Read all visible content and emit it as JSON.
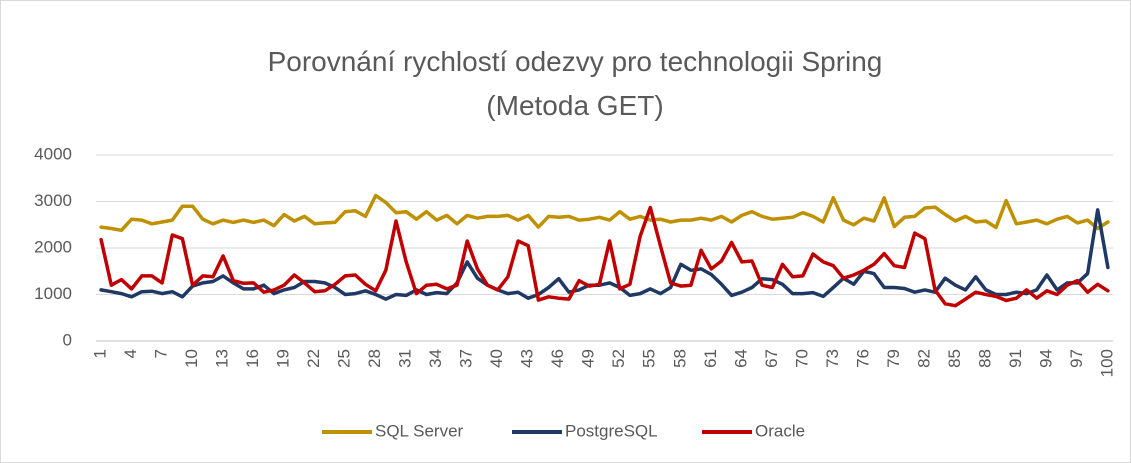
{
  "chart_data": {
    "type": "line",
    "title": "Porovnání rychlostí odezvy pro technologii Spring\n(Metoda GET)",
    "categories": [
      "1",
      null,
      null,
      "4",
      null,
      null,
      "7",
      null,
      null,
      "10",
      null,
      null,
      "13",
      null,
      null,
      "16",
      null,
      null,
      "19",
      null,
      null,
      "22",
      null,
      null,
      "25",
      null,
      null,
      "28",
      null,
      null,
      "31",
      null,
      null,
      "34",
      null,
      null,
      "37",
      null,
      null,
      "40",
      null,
      null,
      "43",
      null,
      null,
      "46",
      null,
      null,
      "49",
      null,
      null,
      "52",
      null,
      null,
      "55",
      null,
      null,
      "58",
      null,
      null,
      "61",
      null,
      null,
      "64",
      null,
      null,
      "67",
      null,
      null,
      "70",
      null,
      null,
      "73",
      null,
      null,
      "76",
      null,
      null,
      "79",
      null,
      null,
      "82",
      null,
      null,
      "85",
      null,
      null,
      "88",
      null,
      null,
      "91",
      null,
      null,
      "94",
      null,
      null,
      "97",
      null,
      null,
      "100"
    ],
    "series": [
      {
        "name": "SQL Server",
        "color": "#bf9000",
        "values": [
          2450,
          2420,
          2380,
          2620,
          2600,
          2520,
          2560,
          2600,
          2900,
          2900,
          2620,
          2520,
          2600,
          2550,
          2600,
          2550,
          2600,
          2480,
          2720,
          2580,
          2680,
          2520,
          2540,
          2550,
          2780,
          2800,
          2680,
          3130,
          2980,
          2760,
          2780,
          2620,
          2780,
          2600,
          2700,
          2520,
          2700,
          2640,
          2680,
          2680,
          2700,
          2600,
          2700,
          2450,
          2680,
          2660,
          2680,
          2600,
          2620,
          2660,
          2600,
          2780,
          2620,
          2680,
          2600,
          2620,
          2560,
          2600,
          2600,
          2640,
          2600,
          2680,
          2560,
          2700,
          2780,
          2680,
          2620,
          2640,
          2660,
          2760,
          2680,
          2560,
          3080,
          2600,
          2500,
          2640,
          2580,
          3080,
          2460,
          2660,
          2680,
          2860,
          2880,
          2720,
          2580,
          2680,
          2560,
          2580,
          2440,
          3020,
          2520,
          2560,
          2600,
          2520,
          2620,
          2680,
          2540,
          2600,
          2420,
          2560
        ]
      },
      {
        "name": "PostgreSQL",
        "color": "#1f3864",
        "values": [
          1100,
          1060,
          1020,
          950,
          1060,
          1070,
          1020,
          1060,
          950,
          1180,
          1250,
          1280,
          1400,
          1250,
          1120,
          1120,
          1200,
          1020,
          1100,
          1150,
          1280,
          1280,
          1250,
          1150,
          1000,
          1020,
          1080,
          1000,
          900,
          1000,
          980,
          1100,
          1000,
          1040,
          1020,
          1250,
          1700,
          1350,
          1200,
          1100,
          1020,
          1050,
          920,
          1000,
          1150,
          1340,
          1050,
          1100,
          1200,
          1200,
          1250,
          1150,
          980,
          1020,
          1120,
          1020,
          1150,
          1650,
          1520,
          1550,
          1430,
          1220,
          980,
          1050,
          1150,
          1340,
          1320,
          1220,
          1020,
          1020,
          1040,
          960,
          1150,
          1350,
          1220,
          1500,
          1450,
          1150,
          1150,
          1130,
          1050,
          1100,
          1050,
          1350,
          1200,
          1100,
          1380,
          1100,
          1000,
          1000,
          1050,
          1020,
          1100,
          1420,
          1100,
          1250,
          1250,
          1450,
          2820,
          1580
        ]
      },
      {
        "name": "Oracle",
        "color": "#c00000",
        "values": [
          2180,
          1200,
          1320,
          1120,
          1400,
          1400,
          1250,
          2280,
          2200,
          1200,
          1400,
          1380,
          1830,
          1300,
          1240,
          1250,
          1050,
          1100,
          1200,
          1420,
          1250,
          1060,
          1080,
          1220,
          1400,
          1420,
          1220,
          1080,
          1520,
          2580,
          1700,
          1020,
          1200,
          1220,
          1120,
          1200,
          2150,
          1550,
          1200,
          1100,
          1380,
          2150,
          2050,
          880,
          950,
          920,
          900,
          1300,
          1180,
          1220,
          2150,
          1120,
          1220,
          2250,
          2870,
          2050,
          1250,
          1180,
          1200,
          1950,
          1550,
          1720,
          2120,
          1700,
          1720,
          1200,
          1150,
          1650,
          1380,
          1400,
          1870,
          1700,
          1620,
          1350,
          1420,
          1520,
          1650,
          1880,
          1620,
          1580,
          2320,
          2200,
          1100,
          800,
          760,
          900,
          1050,
          1000,
          960,
          870,
          920,
          1100,
          920,
          1080,
          1000,
          1200,
          1300,
          1050,
          1220,
          1080
        ]
      }
    ],
    "ylim": [
      0,
      4000
    ],
    "yticks": [
      0,
      1000,
      2000,
      3000,
      4000
    ],
    "grid": true,
    "legend": "bottom"
  }
}
